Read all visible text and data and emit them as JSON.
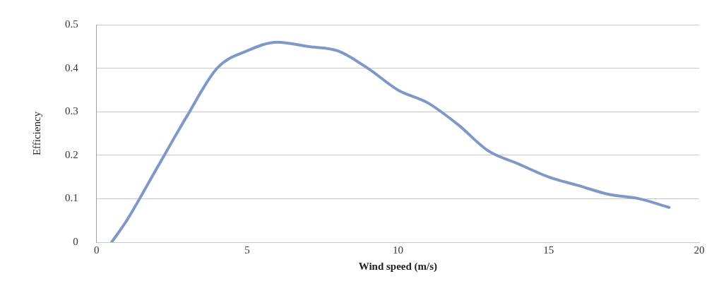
{
  "chart_data": {
    "type": "line",
    "xlabel": "Wind speed (m/s)",
    "ylabel": "Efficiency",
    "x": [
      0.5,
      1,
      2,
      3,
      4,
      5,
      6,
      7,
      8,
      9,
      10,
      11,
      12,
      13,
      14,
      15,
      16,
      17,
      18,
      19
    ],
    "series": [
      {
        "color": "#7f98c8",
        "values": [
          0,
          0.05,
          0.17,
          0.29,
          0.4,
          0.44,
          0.46,
          0.45,
          0.44,
          0.4,
          0.35,
          0.32,
          0.27,
          0.21,
          0.18,
          0.15,
          0.13,
          0.11,
          0.1,
          0.08
        ]
      }
    ],
    "xlim": [
      0,
      20
    ],
    "xticks": [
      0,
      5,
      10,
      15,
      20
    ],
    "ylim": [
      0,
      0.5
    ],
    "yticks": [
      0,
      0.1,
      0.2,
      0.3,
      0.4,
      0.5
    ],
    "grid": "y",
    "legend": false,
    "marker": "none",
    "line_style": "solid"
  }
}
